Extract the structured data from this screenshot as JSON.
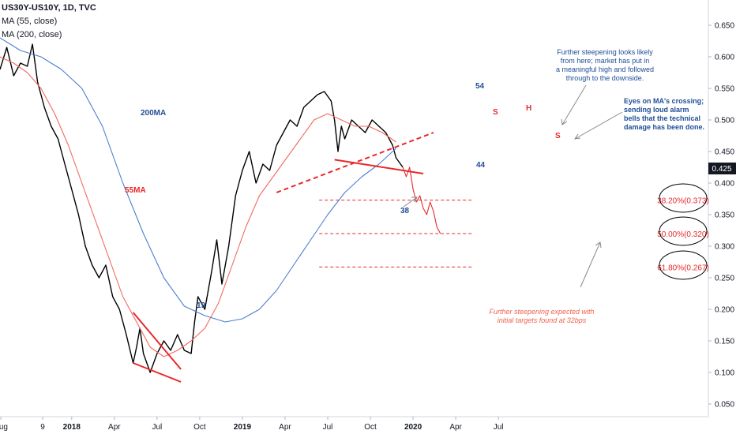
{
  "legend": {
    "symbol": "US30Y-US10Y, 1D, TVC",
    "ma55": "MA (55, close)",
    "ma200": "MA (200, close)"
  },
  "colors": {
    "price": "#000000",
    "ma55": "#f06a60",
    "ma200": "#4a7fcf",
    "red": "#e8282b",
    "blue_text": "#1f4e96",
    "current_badge": "#131722"
  },
  "chart_data": {
    "type": "line",
    "ylim": [
      0.03,
      0.69
    ],
    "xlim": [
      2016.58,
      2020.73
    ],
    "current_value": "0.425",
    "y_ticks": [
      "0.650",
      "0.600",
      "0.550",
      "0.500",
      "0.450",
      "0.400",
      "0.350",
      "0.300",
      "0.250",
      "0.200",
      "0.150",
      "0.100",
      "0.050"
    ],
    "x_ticks": [
      {
        "label": "Aug",
        "t": 2016.585,
        "bold": false
      },
      {
        "label": "9",
        "t": 2016.83,
        "bold": false
      },
      {
        "label": "2018",
        "t": 2017.0,
        "bold": true
      },
      {
        "label": "Apr",
        "t": 2017.25,
        "bold": false
      },
      {
        "label": "Jul",
        "t": 2017.5,
        "bold": false
      },
      {
        "label": "Oct",
        "t": 2017.75,
        "bold": false
      },
      {
        "label": "2019",
        "t": 2018.0,
        "bold": true
      },
      {
        "label": "Apr",
        "t": 2018.25,
        "bold": false
      },
      {
        "label": "Jul",
        "t": 2018.5,
        "bold": false
      },
      {
        "label": "Oct",
        "t": 2018.75,
        "bold": false
      },
      {
        "label": "2020",
        "t": 2019.0,
        "bold": true
      },
      {
        "label": "Apr",
        "t": 2019.25,
        "bold": false
      },
      {
        "label": "Jul",
        "t": 2019.5,
        "bold": false
      }
    ],
    "series": [
      {
        "name": "US30Y-US10Y",
        "color": "#000000",
        "points": [
          [
            2016.58,
            0.58
          ],
          [
            2016.62,
            0.615
          ],
          [
            2016.66,
            0.57
          ],
          [
            2016.7,
            0.59
          ],
          [
            2016.74,
            0.585
          ],
          [
            2016.77,
            0.62
          ],
          [
            2016.8,
            0.56
          ],
          [
            2016.84,
            0.52
          ],
          [
            2016.88,
            0.49
          ],
          [
            2016.92,
            0.47
          ],
          [
            2016.96,
            0.43
          ],
          [
            2017.0,
            0.39
          ],
          [
            2017.04,
            0.35
          ],
          [
            2017.08,
            0.3
          ],
          [
            2017.12,
            0.27
          ],
          [
            2017.16,
            0.25
          ],
          [
            2017.2,
            0.27
          ],
          [
            2017.24,
            0.22
          ],
          [
            2017.28,
            0.2
          ],
          [
            2017.32,
            0.16
          ],
          [
            2017.36,
            0.115
          ],
          [
            2017.38,
            0.14
          ],
          [
            2017.4,
            0.17
          ],
          [
            2017.42,
            0.13
          ],
          [
            2017.46,
            0.1
          ],
          [
            2017.5,
            0.13
          ],
          [
            2017.54,
            0.15
          ],
          [
            2017.58,
            0.135
          ],
          [
            2017.62,
            0.16
          ],
          [
            2017.66,
            0.135
          ],
          [
            2017.7,
            0.13
          ],
          [
            2017.72,
            0.18
          ],
          [
            2017.74,
            0.22
          ],
          [
            2017.78,
            0.2
          ],
          [
            2017.82,
            0.26
          ],
          [
            2017.85,
            0.31
          ],
          [
            2017.88,
            0.24
          ],
          [
            2017.92,
            0.3
          ],
          [
            2017.96,
            0.38
          ],
          [
            2018.0,
            0.42
          ],
          [
            2018.04,
            0.45
          ],
          [
            2018.08,
            0.4
          ],
          [
            2018.12,
            0.43
          ],
          [
            2018.16,
            0.42
          ],
          [
            2018.2,
            0.46
          ],
          [
            2018.24,
            0.48
          ],
          [
            2018.28,
            0.5
          ],
          [
            2018.32,
            0.49
          ],
          [
            2018.36,
            0.52
          ],
          [
            2018.4,
            0.53
          ],
          [
            2018.44,
            0.54
          ],
          [
            2018.48,
            0.545
          ],
          [
            2018.52,
            0.53
          ],
          [
            2018.54,
            0.5
          ],
          [
            2018.56,
            0.45
          ],
          [
            2018.58,
            0.49
          ],
          [
            2018.6,
            0.47
          ],
          [
            2018.64,
            0.5
          ],
          [
            2018.68,
            0.49
          ],
          [
            2018.72,
            0.48
          ],
          [
            2018.76,
            0.5
          ],
          [
            2018.8,
            0.49
          ],
          [
            2018.84,
            0.48
          ],
          [
            2018.88,
            0.46
          ],
          [
            2018.9,
            0.44
          ],
          [
            2018.94,
            0.425
          ]
        ]
      },
      {
        "name": "55MA",
        "color": "#f06a60",
        "points": [
          [
            2016.58,
            0.6
          ],
          [
            2016.66,
            0.59
          ],
          [
            2016.74,
            0.575
          ],
          [
            2016.82,
            0.55
          ],
          [
            2016.9,
            0.51
          ],
          [
            2016.98,
            0.46
          ],
          [
            2017.06,
            0.4
          ],
          [
            2017.14,
            0.34
          ],
          [
            2017.22,
            0.28
          ],
          [
            2017.3,
            0.22
          ],
          [
            2017.38,
            0.18
          ],
          [
            2017.46,
            0.14
          ],
          [
            2017.54,
            0.125
          ],
          [
            2017.62,
            0.135
          ],
          [
            2017.7,
            0.15
          ],
          [
            2017.78,
            0.17
          ],
          [
            2017.86,
            0.21
          ],
          [
            2017.94,
            0.27
          ],
          [
            2018.02,
            0.33
          ],
          [
            2018.1,
            0.38
          ],
          [
            2018.18,
            0.41
          ],
          [
            2018.26,
            0.44
          ],
          [
            2018.34,
            0.47
          ],
          [
            2018.42,
            0.5
          ],
          [
            2018.5,
            0.51
          ],
          [
            2018.58,
            0.5
          ],
          [
            2018.66,
            0.49
          ],
          [
            2018.74,
            0.49
          ],
          [
            2018.82,
            0.48
          ],
          [
            2018.9,
            0.465
          ]
        ]
      },
      {
        "name": "200MA",
        "color": "#4a7fcf",
        "points": [
          [
            2016.58,
            0.63
          ],
          [
            2016.7,
            0.61
          ],
          [
            2016.82,
            0.6
          ],
          [
            2016.94,
            0.58
          ],
          [
            2017.06,
            0.55
          ],
          [
            2017.18,
            0.49
          ],
          [
            2017.3,
            0.4
          ],
          [
            2017.42,
            0.32
          ],
          [
            2017.54,
            0.25
          ],
          [
            2017.66,
            0.205
          ],
          [
            2017.78,
            0.19
          ],
          [
            2017.9,
            0.18
          ],
          [
            2018.0,
            0.185
          ],
          [
            2018.1,
            0.2
          ],
          [
            2018.2,
            0.23
          ],
          [
            2018.3,
            0.27
          ],
          [
            2018.4,
            0.31
          ],
          [
            2018.5,
            0.35
          ],
          [
            2018.6,
            0.385
          ],
          [
            2018.7,
            0.41
          ],
          [
            2018.8,
            0.43
          ],
          [
            2018.9,
            0.455
          ]
        ]
      },
      {
        "name": "projection",
        "color": "#e8282b",
        "points": [
          [
            2018.94,
            0.425
          ],
          [
            2018.96,
            0.41
          ],
          [
            2018.98,
            0.425
          ],
          [
            2019.0,
            0.39
          ],
          [
            2019.02,
            0.37
          ],
          [
            2019.04,
            0.38
          ],
          [
            2019.06,
            0.36
          ],
          [
            2019.08,
            0.35
          ],
          [
            2019.1,
            0.37
          ],
          [
            2019.12,
            0.355
          ],
          [
            2019.14,
            0.33
          ],
          [
            2019.16,
            0.32
          ]
        ]
      }
    ],
    "fib_levels": [
      {
        "label": "38.20%(0.373)",
        "value": 0.373
      },
      {
        "label": "50.00%(0.320)",
        "value": 0.32
      },
      {
        "label": "61.80%(0.267)",
        "value": 0.267
      }
    ],
    "trendlines": [
      {
        "points": [
          [
            2017.36,
            0.195
          ],
          [
            2017.64,
            0.105
          ]
        ]
      },
      {
        "points": [
          [
            2017.36,
            0.115
          ],
          [
            2017.64,
            0.085
          ]
        ]
      },
      {
        "points": [
          [
            2018.54,
            0.437
          ],
          [
            2019.06,
            0.415
          ]
        ]
      },
      {
        "points": [
          [
            2018.2,
            0.385
          ],
          [
            2019.12,
            0.48
          ]
        ],
        "dashed": true
      }
    ]
  },
  "annotations": {
    "wave19": "19",
    "wave54": "54",
    "wave44": "44",
    "wave38": "38",
    "hs_s1": "S",
    "hs_h": "H",
    "hs_s2": "S",
    "ma200_label": "200MA",
    "ma55_label": "55MA",
    "note1": [
      "Further steepening looks likely",
      "from here; market has put in",
      "a meaningful high and followed",
      "through to the downside."
    ],
    "note2": [
      "Eyes on MA's crossing;",
      "sending loud alarm",
      "bells that the technical",
      "damage has been done."
    ],
    "note3": [
      "Further steepening expected with",
      "initial targets found at 32bps"
    ]
  }
}
